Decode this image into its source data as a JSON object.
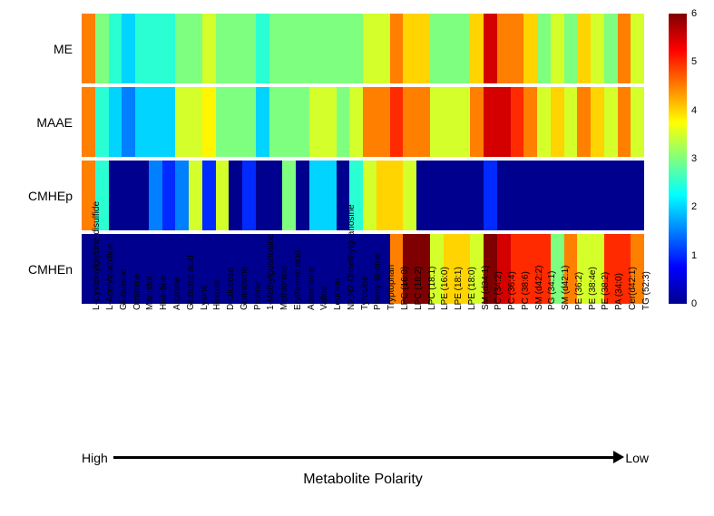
{
  "chart": {
    "type": "heatmap",
    "row_labels": [
      "ME",
      "MAAE",
      "CMHEp",
      "CMHEn"
    ],
    "col_labels": [
      "L-Cysteinylglycine disulfide",
      "L-Acetylcarnitine",
      "Glutamine",
      "Ornithine",
      "Mannitol",
      "Histidine",
      "Arginine",
      "Glutamic acid",
      "Lysine",
      "Hexose",
      "D-Glucose",
      "Guanosine",
      "Proline",
      "1-Methylguanosine",
      "Methionine",
      "Erythronic acid",
      "Adenosine",
      "Valine",
      "Leucine",
      "N2,N2-Dimethylguanosine",
      "Tyrosine",
      "Phenylalanine",
      "Tryptophan",
      "LPC (16:0)",
      "LPC (18:2)",
      "LPC (18:1)",
      "LPE (16:0)",
      "LPE (18:1)",
      "LPE (18:0)",
      "SM (d34:1)",
      "PC (34:2)",
      "PC (36:4)",
      "PC (38:6)",
      "SM (d42:2)",
      "PG (34:1)",
      "SM (d42:1)",
      "PE (36:2)",
      "PE (38:4e)",
      "PE (38:2)",
      "PA (34:0)",
      "Cer(d42:1)",
      "TG (52:3)"
    ],
    "data": [
      [
        4.5,
        3.0,
        2.5,
        2.0,
        2.5,
        2.5,
        2.5,
        3.0,
        3.0,
        3.5,
        3.0,
        3.0,
        3.0,
        2.5,
        3.0,
        3.0,
        3.0,
        3.0,
        3.0,
        3.0,
        3.0,
        3.5,
        3.5,
        4.5,
        4.0,
        4.0,
        3.0,
        3.0,
        3.0,
        4.0,
        5.5,
        4.5,
        4.5,
        4.0,
        3.0,
        3.5,
        3.0,
        4.0,
        3.5,
        3.0,
        4.5,
        3.5
      ],
      [
        4.5,
        2.5,
        2.0,
        1.5,
        2.0,
        2.0,
        2.0,
        3.5,
        3.5,
        3.8,
        3.0,
        3.0,
        3.0,
        2.0,
        3.0,
        3.0,
        3.0,
        3.5,
        3.5,
        3.0,
        3.5,
        4.5,
        4.5,
        5.0,
        4.5,
        4.5,
        3.5,
        3.5,
        3.5,
        4.5,
        5.5,
        5.5,
        5.0,
        4.5,
        3.5,
        4.0,
        3.5,
        4.5,
        4.0,
        3.5,
        4.5,
        3.5
      ],
      [
        4.5,
        2.5,
        0.0,
        0.0,
        0.0,
        1.5,
        1.0,
        1.5,
        3.5,
        1.0,
        3.5,
        0.0,
        1.0,
        0.0,
        0.0,
        3.0,
        0.0,
        2.0,
        2.0,
        0.0,
        2.5,
        3.5,
        4.0,
        4.0,
        3.5,
        0.0,
        0.0,
        0.0,
        0.0,
        0.0,
        1.0,
        0.0,
        0.0,
        0.0,
        0.0,
        0.0,
        0.0,
        0.0,
        0.0,
        0.0,
        0.0,
        0.0
      ],
      [
        0.0,
        0.0,
        0.0,
        0.0,
        0.0,
        0.0,
        0.0,
        0.0,
        0.0,
        0.0,
        0.0,
        0.0,
        0.0,
        0.0,
        0.0,
        0.0,
        0.0,
        0.0,
        0.0,
        0.0,
        0.0,
        0.0,
        0.0,
        4.5,
        6.0,
        6.0,
        3.5,
        4.0,
        4.0,
        3.5,
        6.0,
        5.5,
        5.0,
        5.0,
        5.0,
        3.0,
        4.5,
        3.5,
        3.5,
        5.0,
        5.0,
        4.5
      ]
    ],
    "colorscale": {
      "min": 0,
      "max": 6,
      "stops": [
        {
          "v": 0.0,
          "c": "#00008f"
        },
        {
          "v": 0.125,
          "c": "#0000ff"
        },
        {
          "v": 0.25,
          "c": "#007fff"
        },
        {
          "v": 0.375,
          "c": "#00ffff"
        },
        {
          "v": 0.5,
          "c": "#7fff7f"
        },
        {
          "v": 0.625,
          "c": "#ffff00"
        },
        {
          "v": 0.75,
          "c": "#ff7f00"
        },
        {
          "v": 0.875,
          "c": "#ff0000"
        },
        {
          "v": 1.0,
          "c": "#7f0000"
        }
      ],
      "ticks": [
        0,
        1,
        2,
        3,
        4,
        5,
        6
      ]
    },
    "x_axis_title": "Metabolite Polarity",
    "polarity_high": "High",
    "polarity_low": "Low",
    "background_color": "#ffffff",
    "font_family": "Arial",
    "y_label_fontsize": 14,
    "x_label_fontsize": 10,
    "title_fontsize": 16
  }
}
